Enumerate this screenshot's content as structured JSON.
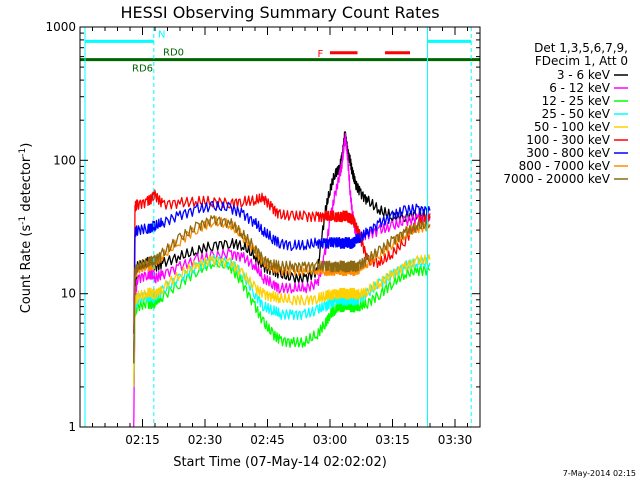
{
  "chart_data": {
    "type": "line",
    "title": "HESSI Observing Summary Count Rates",
    "xlabel": "Start Time (07-May-14 02:02:02)",
    "ylabel_main": "Count Rate (s",
    "ylabel_exp1": "-1",
    "ylabel_mid": " detector",
    "ylabel_exp2": "-1",
    "ylabel_close": ")",
    "y_scale": "log",
    "ylim": [
      1,
      1000
    ],
    "xlim_minutes": [
      2.0,
      3.6
    ],
    "x_ticks": [
      {
        "minute": 2.25,
        "label": "02:15"
      },
      {
        "minute": 2.5,
        "label": "02:30"
      },
      {
        "minute": 2.75,
        "label": "02:45"
      },
      {
        "minute": 3.0,
        "label": "03:00"
      },
      {
        "minute": 3.25,
        "label": "03:15"
      },
      {
        "minute": 3.5,
        "label": "03:30"
      }
    ],
    "y_ticks": [
      {
        "value": 1,
        "label": "1"
      },
      {
        "value": 10,
        "label": "10"
      },
      {
        "value": 100,
        "label": "100"
      },
      {
        "value": 1000,
        "label": "1000"
      }
    ],
    "legend_header": [
      "Det 1,3,5,6,7,9,",
      "FDecim 1, Att 0"
    ],
    "legend_placement": "right",
    "footer_date": "7-May-2014 02:15",
    "flag_labels": {
      "night": "N",
      "rd0": "RD0",
      "rd6": "RD6",
      "flare": "F"
    },
    "vertical_markers": [
      {
        "minute": 2.02,
        "style": "solid"
      },
      {
        "minute": 2.295,
        "style": "dashed"
      },
      {
        "minute": 3.39,
        "style": "solid"
      },
      {
        "minute": 3.565,
        "style": "dashed"
      }
    ],
    "flags": [
      {
        "name": "night",
        "color": "#00ffff",
        "y": 780,
        "segments": [
          [
            2.02,
            2.295
          ],
          [
            3.39,
            3.565
          ]
        ]
      },
      {
        "name": "flare",
        "color": "#ff0000",
        "y": 640,
        "segments": [
          [
            3.0,
            3.11
          ],
          [
            3.22,
            3.32
          ]
        ]
      },
      {
        "name": "rd0",
        "color": "#006400",
        "y": 570,
        "segments": [
          [
            2.29,
            2.56
          ],
          [
            2.74,
            3.12
          ],
          [
            3.55,
            3.6
          ]
        ]
      },
      {
        "name": "rd6",
        "color": "#006400",
        "y": 570,
        "segments": [
          [
            2.0,
            2.29
          ],
          [
            2.56,
            2.74
          ],
          [
            3.12,
            3.55
          ]
        ]
      }
    ],
    "series": [
      {
        "name": "3 - 6 keV",
        "color": "#000000",
        "x": [
          2.215,
          2.22,
          2.23,
          2.27,
          2.29,
          2.3,
          2.33,
          2.4,
          2.47,
          2.53,
          2.6,
          2.65,
          2.7,
          2.735,
          2.77,
          2.8,
          2.85,
          2.9,
          2.95,
          2.98,
          3.0,
          3.02,
          3.04,
          3.05,
          3.06,
          3.07,
          3.08,
          3.09,
          3.1,
          3.12,
          3.15,
          3.2,
          3.25,
          3.3,
          3.35,
          3.4
        ],
        "y": [
          3,
          11,
          16,
          17,
          17,
          16,
          17,
          19,
          21,
          23,
          24,
          23,
          19,
          16,
          15,
          14,
          13,
          13,
          15,
          40,
          60,
          80,
          90,
          110,
          160,
          120,
          100,
          80,
          68,
          58,
          50,
          42,
          38,
          38,
          40,
          38
        ]
      },
      {
        "name": "6 - 12 keV",
        "color": "#ff00ff",
        "x": [
          2.215,
          2.22,
          2.23,
          2.27,
          2.29,
          2.3,
          2.33,
          2.4,
          2.47,
          2.53,
          2.6,
          2.65,
          2.7,
          2.735,
          2.77,
          2.8,
          2.85,
          2.9,
          2.95,
          2.98,
          3.0,
          3.02,
          3.04,
          3.05,
          3.06,
          3.07,
          3.08,
          3.09,
          3.1,
          3.12,
          3.15,
          3.2,
          3.25,
          3.3,
          3.35,
          3.4
        ],
        "y": [
          1,
          9,
          13,
          14,
          14,
          13,
          14,
          16,
          18,
          19,
          20,
          19,
          16,
          13,
          12,
          11,
          11,
          11,
          12,
          20,
          35,
          55,
          80,
          100,
          150,
          110,
          60,
          40,
          30,
          27,
          28,
          30,
          32,
          35,
          37,
          36
        ]
      },
      {
        "name": "12 - 25 keV",
        "color": "#00ff00",
        "x": [
          2.215,
          2.22,
          2.23,
          2.27,
          2.29,
          2.3,
          2.33,
          2.4,
          2.47,
          2.53,
          2.6,
          2.65,
          2.7,
          2.735,
          2.77,
          2.8,
          2.85,
          2.9,
          2.95,
          2.98,
          3.0,
          3.02,
          3.04,
          3.05,
          3.06,
          3.07,
          3.08,
          3.09,
          3.1,
          3.12,
          3.15,
          3.2,
          3.25,
          3.3,
          3.35,
          3.4
        ],
        "y": [
          2,
          7,
          8,
          8.5,
          8.5,
          8.5,
          9.5,
          12,
          15,
          17,
          16,
          12,
          8,
          6,
          5,
          4.5,
          4.3,
          4.3,
          5,
          6,
          7,
          7.5,
          8,
          8,
          8.2,
          8.2,
          8,
          8,
          8,
          8,
          8.5,
          10,
          12,
          14,
          15,
          15
        ]
      },
      {
        "name": "25 - 50 keV",
        "color": "#00ffff",
        "x": [
          2.215,
          2.22,
          2.23,
          2.27,
          2.29,
          2.3,
          2.33,
          2.4,
          2.47,
          2.53,
          2.6,
          2.65,
          2.7,
          2.735,
          2.77,
          2.8,
          2.85,
          2.9,
          2.95,
          2.98,
          3.0,
          3.02,
          3.04,
          3.05,
          3.06,
          3.07,
          3.08,
          3.09,
          3.1,
          3.12,
          3.15,
          3.2,
          3.25,
          3.3,
          3.35,
          3.4
        ],
        "y": [
          2,
          8,
          9,
          9.5,
          9.5,
          9.5,
          10.5,
          13,
          16,
          18,
          17,
          14,
          10,
          8,
          7.5,
          7,
          7,
          7,
          7.5,
          8,
          8.5,
          9,
          9,
          9,
          9,
          9,
          9,
          9,
          9,
          9.2,
          10,
          12,
          14,
          16,
          17,
          17
        ]
      },
      {
        "name": "50 - 100 keV",
        "color": "#ffd000",
        "x": [
          2.215,
          2.22,
          2.23,
          2.27,
          2.29,
          2.3,
          2.33,
          2.4,
          2.47,
          2.53,
          2.6,
          2.65,
          2.7,
          2.735,
          2.77,
          2.8,
          2.85,
          2.9,
          2.95,
          2.98,
          3.0,
          3.02,
          3.04,
          3.05,
          3.06,
          3.07,
          3.08,
          3.09,
          3.1,
          3.12,
          3.15,
          3.2,
          3.25,
          3.3,
          3.35,
          3.4
        ],
        "y": [
          2,
          9,
          9.5,
          10,
          10,
          10,
          11,
          14,
          16.5,
          18,
          17,
          14,
          11,
          10,
          9.5,
          9.2,
          9,
          9,
          9.2,
          9.5,
          9.8,
          10,
          10,
          10,
          10,
          10,
          10,
          10,
          10,
          10,
          10.5,
          12,
          14,
          16,
          17.5,
          18
        ]
      },
      {
        "name": "100 - 300 keV",
        "color": "#ff0000",
        "x": [
          2.215,
          2.22,
          2.23,
          2.27,
          2.29,
          2.3,
          2.33,
          2.4,
          2.47,
          2.53,
          2.6,
          2.65,
          2.7,
          2.735,
          2.77,
          2.8,
          2.85,
          2.9,
          2.95,
          2.98,
          3.0,
          3.02,
          3.04,
          3.05,
          3.06,
          3.07,
          3.08,
          3.09,
          3.1,
          3.12,
          3.15,
          3.2,
          3.25,
          3.3,
          3.35,
          3.4
        ],
        "y": [
          5,
          45,
          47,
          49,
          52,
          55,
          47,
          48,
          49,
          49,
          48,
          49,
          50,
          52,
          44,
          39,
          38,
          38,
          38,
          38,
          38,
          38,
          38,
          38,
          38,
          38,
          37,
          36,
          33,
          27,
          18,
          17,
          20,
          25,
          35,
          40
        ]
      },
      {
        "name": "300 - 800 keV",
        "color": "#0000ff",
        "x": [
          2.215,
          2.22,
          2.23,
          2.27,
          2.29,
          2.3,
          2.33,
          2.4,
          2.47,
          2.53,
          2.6,
          2.65,
          2.7,
          2.735,
          2.77,
          2.8,
          2.85,
          2.9,
          2.95,
          2.98,
          3.0,
          3.02,
          3.04,
          3.05,
          3.06,
          3.07,
          3.08,
          3.09,
          3.1,
          3.12,
          3.15,
          3.2,
          3.25,
          3.3,
          3.35,
          3.4
        ],
        "y": [
          3,
          28,
          30,
          31,
          32,
          32,
          34,
          39,
          43,
          45,
          44,
          40,
          34,
          29,
          26,
          24,
          23,
          23,
          24,
          24,
          24,
          24,
          24,
          24,
          24,
          24,
          24,
          24,
          25,
          26,
          29,
          34,
          38,
          42,
          43,
          42
        ]
      },
      {
        "name": "800 - 7000 keV",
        "color": "#ff8c00",
        "x": [
          2.215,
          2.22,
          2.23,
          2.27,
          2.29,
          2.3,
          2.33,
          2.4,
          2.47,
          2.53,
          2.6,
          2.65,
          2.7,
          2.735,
          2.77,
          2.8,
          2.85,
          2.9,
          2.95,
          2.98,
          3.0,
          3.02,
          3.04,
          3.05,
          3.06,
          3.07,
          3.08,
          3.09,
          3.1,
          3.12,
          3.15,
          3.2,
          3.25,
          3.3,
          3.35,
          3.4
        ],
        "y": [
          3,
          14,
          15,
          16,
          16.5,
          17,
          19,
          25,
          31,
          35,
          33,
          27,
          21,
          17,
          15.5,
          15,
          15,
          15,
          15,
          15,
          15,
          15,
          15,
          15,
          15,
          15,
          15,
          15,
          15,
          15.5,
          17,
          20,
          24,
          28,
          31,
          32
        ]
      },
      {
        "name": "7000 - 20000 keV",
        "color": "#8b6914",
        "x": [
          2.215,
          2.22,
          2.23,
          2.27,
          2.29,
          2.3,
          2.33,
          2.4,
          2.47,
          2.53,
          2.6,
          2.65,
          2.7,
          2.735,
          2.77,
          2.8,
          2.85,
          2.9,
          2.95,
          2.98,
          3.0,
          3.02,
          3.04,
          3.05,
          3.06,
          3.07,
          3.08,
          3.09,
          3.1,
          3.12,
          3.15,
          3.2,
          3.25,
          3.3,
          3.35,
          3.4
        ],
        "y": [
          3,
          15,
          16,
          17,
          17.5,
          18,
          20,
          26,
          32,
          36,
          34,
          28,
          22,
          18,
          16.5,
          16,
          16,
          16,
          16,
          16,
          16,
          16,
          16,
          16,
          16,
          16,
          16,
          16,
          16,
          16.5,
          18,
          21,
          25,
          29,
          32,
          33
        ]
      }
    ]
  }
}
